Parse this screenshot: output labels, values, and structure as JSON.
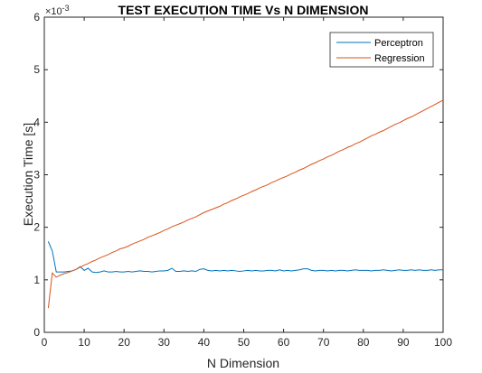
{
  "chart_data": {
    "type": "line",
    "title": "TEST EXECUTION TIME Vs N DIMENSION",
    "xlabel": "N Dimension",
    "ylabel": "Execution Time [s]",
    "y_multiplier": "×10-3",
    "xlim": [
      0,
      100
    ],
    "ylim": [
      0,
      6
    ],
    "x_ticks": [
      "0",
      "10",
      "20",
      "30",
      "40",
      "50",
      "60",
      "70",
      "80",
      "90",
      "100"
    ],
    "y_ticks": [
      "0",
      "1",
      "2",
      "3",
      "4",
      "5",
      "6"
    ],
    "grid": false,
    "legend_position": "top-right",
    "x": [
      1,
      2,
      3,
      4,
      5,
      6,
      7,
      8,
      9,
      10,
      11,
      12,
      13,
      14,
      15,
      16,
      17,
      18,
      19,
      20,
      21,
      22,
      23,
      24,
      25,
      26,
      27,
      28,
      29,
      30,
      31,
      32,
      33,
      34,
      35,
      36,
      37,
      38,
      39,
      40,
      41,
      42,
      43,
      44,
      45,
      46,
      47,
      48,
      49,
      50,
      51,
      52,
      53,
      54,
      55,
      56,
      57,
      58,
      59,
      60,
      61,
      62,
      63,
      64,
      65,
      66,
      67,
      68,
      69,
      70,
      71,
      72,
      73,
      74,
      75,
      76,
      77,
      78,
      79,
      80,
      81,
      82,
      83,
      84,
      85,
      86,
      87,
      88,
      89,
      90,
      91,
      92,
      93,
      94,
      95,
      96,
      97,
      98,
      99,
      100
    ],
    "series": [
      {
        "name": "Perceptron",
        "color": "#0072BD",
        "values": [
          1.73,
          1.55,
          1.15,
          1.15,
          1.15,
          1.16,
          1.17,
          1.2,
          1.25,
          1.18,
          1.22,
          1.15,
          1.14,
          1.15,
          1.17,
          1.15,
          1.15,
          1.16,
          1.15,
          1.15,
          1.16,
          1.15,
          1.16,
          1.17,
          1.16,
          1.16,
          1.15,
          1.16,
          1.17,
          1.17,
          1.18,
          1.22,
          1.16,
          1.16,
          1.17,
          1.16,
          1.17,
          1.16,
          1.2,
          1.21,
          1.18,
          1.17,
          1.18,
          1.17,
          1.18,
          1.17,
          1.18,
          1.17,
          1.16,
          1.17,
          1.18,
          1.17,
          1.18,
          1.17,
          1.17,
          1.18,
          1.18,
          1.17,
          1.19,
          1.17,
          1.18,
          1.17,
          1.18,
          1.19,
          1.21,
          1.21,
          1.18,
          1.17,
          1.18,
          1.18,
          1.17,
          1.18,
          1.17,
          1.18,
          1.18,
          1.17,
          1.18,
          1.19,
          1.18,
          1.18,
          1.18,
          1.17,
          1.18,
          1.18,
          1.19,
          1.18,
          1.17,
          1.18,
          1.19,
          1.18,
          1.18,
          1.19,
          1.18,
          1.19,
          1.18,
          1.18,
          1.19,
          1.18,
          1.19,
          1.19
        ]
      },
      {
        "name": "Regression",
        "color": "#D95319",
        "values": [
          0.46,
          1.13,
          1.05,
          1.09,
          1.12,
          1.14,
          1.17,
          1.2,
          1.24,
          1.28,
          1.31,
          1.35,
          1.38,
          1.42,
          1.45,
          1.48,
          1.52,
          1.55,
          1.59,
          1.61,
          1.64,
          1.68,
          1.71,
          1.74,
          1.77,
          1.81,
          1.84,
          1.87,
          1.9,
          1.94,
          1.97,
          2.01,
          2.04,
          2.07,
          2.1,
          2.14,
          2.17,
          2.2,
          2.24,
          2.28,
          2.31,
          2.34,
          2.37,
          2.4,
          2.44,
          2.47,
          2.51,
          2.54,
          2.58,
          2.61,
          2.64,
          2.68,
          2.71,
          2.75,
          2.78,
          2.81,
          2.85,
          2.88,
          2.92,
          2.95,
          2.98,
          3.02,
          3.05,
          3.09,
          3.12,
          3.16,
          3.2,
          3.23,
          3.27,
          3.3,
          3.34,
          3.37,
          3.41,
          3.45,
          3.48,
          3.52,
          3.55,
          3.59,
          3.62,
          3.66,
          3.7,
          3.74,
          3.77,
          3.81,
          3.84,
          3.88,
          3.92,
          3.96,
          3.99,
          4.03,
          4.07,
          4.1,
          4.14,
          4.18,
          4.22,
          4.26,
          4.3,
          4.34,
          4.38,
          4.42
        ]
      }
    ]
  }
}
